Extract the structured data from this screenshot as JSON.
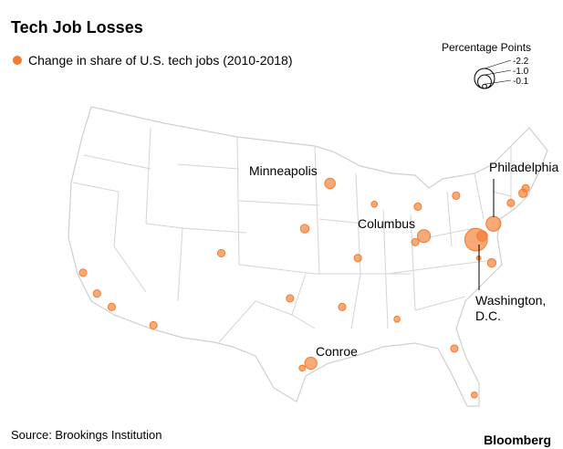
{
  "chart_data": {
    "type": "bubble-map",
    "title": "Tech Job Losses",
    "legend_label": "Change in share of U.S. tech jobs (2010-2018)",
    "color": "#f47b30",
    "size_legend": {
      "title": "Percentage Points",
      "values": [
        -2.2,
        {
          "value": -1,
          "label": "-1.0"
        },
        -0.1
      ]
    },
    "points": [
      {
        "lon": -122.4,
        "lat": 37.7,
        "value": -0.3
      },
      {
        "lon": -120.8,
        "lat": 36.0,
        "value": -0.3
      },
      {
        "lon": -119.1,
        "lat": 34.9,
        "value": -0.3
      },
      {
        "lon": -114.3,
        "lat": 33.4,
        "value": -0.3
      },
      {
        "lon": -106.5,
        "lat": 39.3,
        "value": -0.3
      },
      {
        "lon": -96.9,
        "lat": 41.3,
        "value": -0.4
      },
      {
        "lon": -94.0,
        "lat": 45.0,
        "value": -0.6,
        "label": [
          "Minneapolis"
        ]
      },
      {
        "lon": -88.9,
        "lat": 43.3,
        "value": -0.2
      },
      {
        "lon": -83.9,
        "lat": 43.1,
        "value": -0.3
      },
      {
        "lon": -79.5,
        "lat": 44.0,
        "value": -0.3
      },
      {
        "lon": -83.2,
        "lat": 40.7,
        "value": -0.9,
        "label": [
          "Columbus"
        ]
      },
      {
        "lon": -84.2,
        "lat": 40.2,
        "value": -0.3
      },
      {
        "lon": -90.8,
        "lat": 38.9,
        "value": -0.3
      },
      {
        "lon": -98.6,
        "lat": 35.6,
        "value": -0.3
      },
      {
        "lon": -92.6,
        "lat": 34.9,
        "value": -0.3
      },
      {
        "lon": -86.3,
        "lat": 33.9,
        "value": -0.2
      },
      {
        "lon": -79.7,
        "lat": 31.5,
        "value": -0.3
      },
      {
        "lon": -77.4,
        "lat": 27.7,
        "value": -0.2
      },
      {
        "lon": -96.2,
        "lat": 30.3,
        "value": -0.8,
        "label": [
          "Conroe"
        ]
      },
      {
        "lon": -97.2,
        "lat": 29.9,
        "value": -0.2
      },
      {
        "lon": -77.2,
        "lat": 40.4,
        "value": -2.8,
        "label": [
          "Washington,",
          "D.C."
        ]
      },
      {
        "lon": -76.5,
        "lat": 40.7,
        "value": -0.6
      },
      {
        "lon": -76.9,
        "lat": 38.9,
        "value": -0.1
      },
      {
        "lon": -75.4,
        "lat": 38.5,
        "value": -0.4
      },
      {
        "lon": -75.2,
        "lat": 41.7,
        "value": -1.2,
        "label": [
          "Philadelphia"
        ]
      },
      {
        "lon": -71.8,
        "lat": 44.2,
        "value": -0.4
      },
      {
        "lon": -71.5,
        "lat": 44.6,
        "value": -0.3
      },
      {
        "lon": -73.2,
        "lat": 43.4,
        "value": -0.3
      }
    ],
    "source": "Source: Brookings Institution",
    "brand": "Bloomberg"
  }
}
